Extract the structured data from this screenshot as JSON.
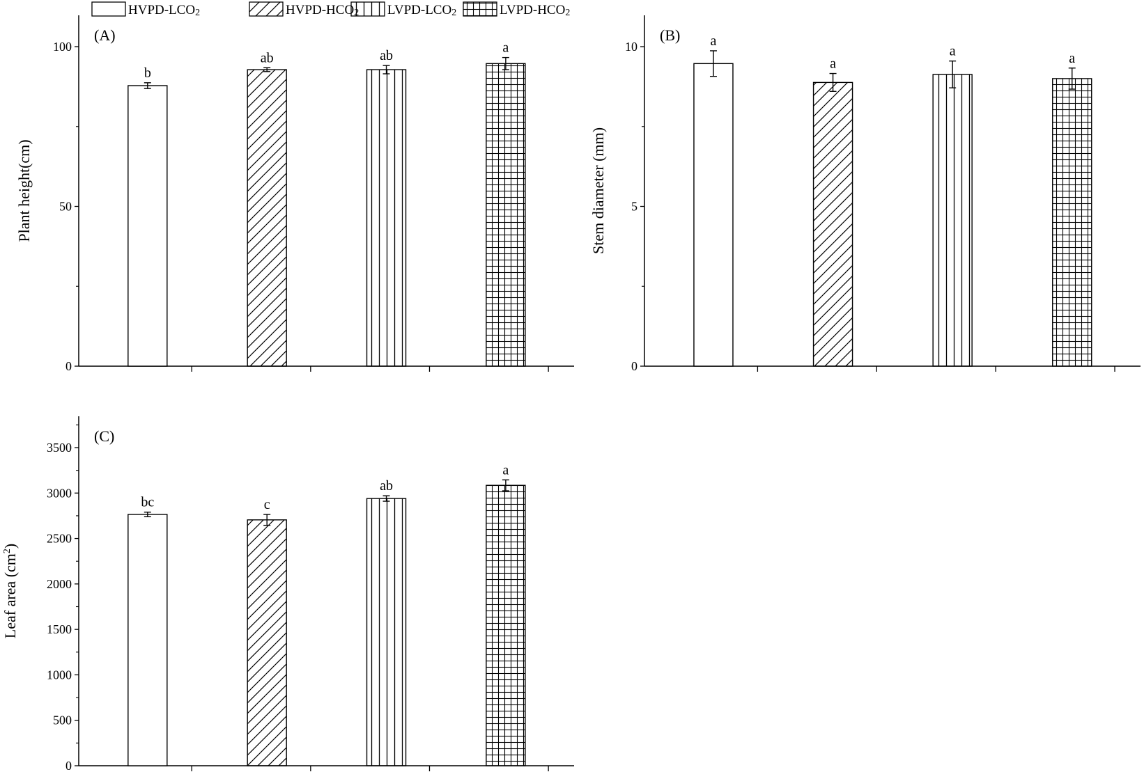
{
  "legend": {
    "entries": [
      {
        "key": "HVPD-LCO2",
        "label": "HVPD-LCO",
        "sub": "2",
        "pattern": "none"
      },
      {
        "key": "HVPD-HCO2",
        "label": "HVPD-HCO",
        "sub": "2",
        "pattern": "diagonal"
      },
      {
        "key": "LVPD-LCO2",
        "label": "LVPD-LCO",
        "sub": "2",
        "pattern": "vertical"
      },
      {
        "key": "LVPD-HCO2",
        "label": "LVPD-HCO",
        "sub": "2",
        "pattern": "grid"
      }
    ],
    "placement": "top"
  },
  "colors": {
    "line": "#000000",
    "fill": "#ffffff"
  },
  "chart_data": [
    {
      "type": "bar",
      "panel": "(A)",
      "title": "",
      "xlabel": "",
      "ylabel": "Plant height(cm)",
      "ylim": [
        0,
        100
      ],
      "yticks": [
        0,
        50,
        100
      ],
      "categories": [
        "HVPD-LCO2",
        "HVPD-HCO2",
        "LVPD-LCO2",
        "LVPD-HCO2"
      ],
      "values": [
        87.8,
        92.8,
        92.8,
        94.7
      ],
      "errors": [
        0.9,
        0.6,
        1.3,
        1.9
      ],
      "significance": [
        "b",
        "ab",
        "ab",
        "a"
      ],
      "grid": false
    },
    {
      "type": "bar",
      "panel": "(B)",
      "title": "",
      "xlabel": "",
      "ylabel": "Stem diameter (mm)",
      "ylim": [
        0,
        10
      ],
      "yticks": [
        0,
        5,
        10
      ],
      "categories": [
        "HVPD-LCO2",
        "HVPD-HCO2",
        "LVPD-LCO2",
        "LVPD-HCO2"
      ],
      "values": [
        9.47,
        8.88,
        9.13,
        9.0
      ],
      "errors": [
        0.4,
        0.28,
        0.42,
        0.33
      ],
      "significance": [
        "a",
        "a",
        "a",
        "a"
      ],
      "grid": false
    },
    {
      "type": "bar",
      "panel": "(C)",
      "title": "",
      "xlabel": "",
      "ylabel": "Leaf area (cm",
      "ylabel_sup": "2",
      "ylabel_tail": ")",
      "ylim": [
        0,
        3500
      ],
      "yticks": [
        0,
        500,
        1000,
        1500,
        2000,
        2500,
        3000,
        3500
      ],
      "categories": [
        "HVPD-LCO2",
        "HVPD-HCO2",
        "LVPD-LCO2",
        "LVPD-HCO2"
      ],
      "values": [
        2765,
        2705,
        2940,
        3085
      ],
      "errors": [
        25,
        60,
        30,
        60
      ],
      "significance": [
        "bc",
        "c",
        "ab",
        "a"
      ],
      "grid": false
    }
  ]
}
